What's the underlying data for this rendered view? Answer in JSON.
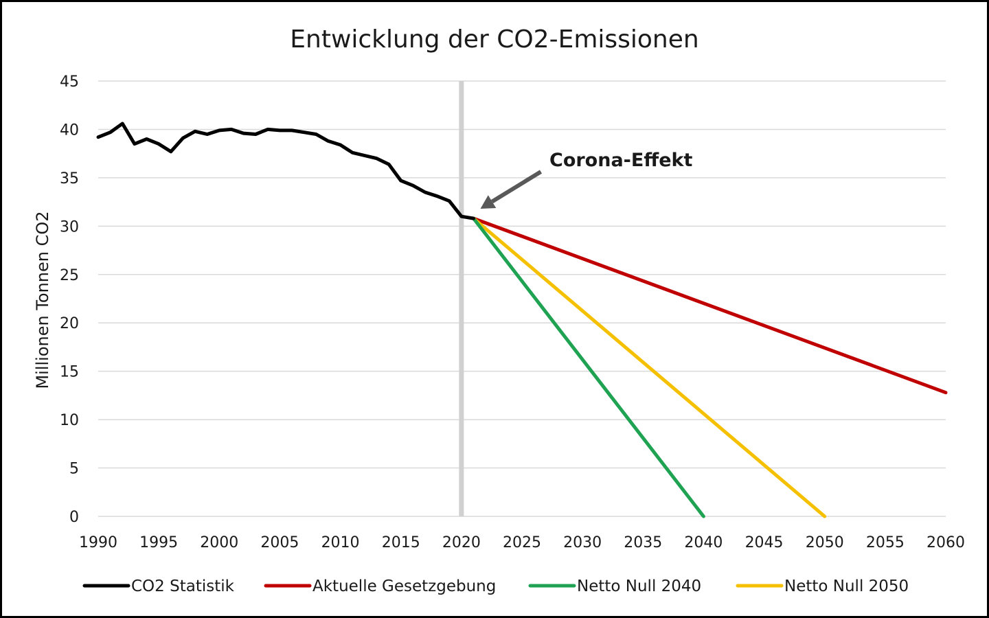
{
  "chart_data": {
    "type": "line",
    "title": "Entwicklung der CO2-Emissionen",
    "xlabel": "",
    "ylabel": "Millionen Tonnen CO2",
    "xlim": [
      1990,
      2060
    ],
    "ylim": [
      0,
      45
    ],
    "x_ticks": [
      "1990",
      "1995",
      "2000",
      "2005",
      "2010",
      "2015",
      "2020",
      "2025",
      "2030",
      "2035",
      "2040",
      "2045",
      "2050",
      "2055",
      "2060"
    ],
    "y_ticks": [
      "0",
      "5",
      "10",
      "15",
      "20",
      "25",
      "30",
      "35",
      "40",
      "45"
    ],
    "grid": true,
    "vertical_marker_x": 2020,
    "annotation": {
      "text": "Corona-Effekt",
      "target_x": 2021,
      "target_y": 30.8
    },
    "legend_position": "bottom",
    "series": [
      {
        "name": "CO2 Statistik",
        "color": "#000000",
        "x": [
          1990,
          1991,
          1992,
          1993,
          1994,
          1995,
          1996,
          1997,
          1998,
          1999,
          2000,
          2001,
          2002,
          2003,
          2004,
          2005,
          2006,
          2007,
          2008,
          2009,
          2010,
          2011,
          2012,
          2013,
          2014,
          2015,
          2016,
          2017,
          2018,
          2019,
          2020,
          2021
        ],
        "y": [
          39.2,
          39.7,
          40.6,
          38.5,
          39.0,
          38.5,
          37.7,
          39.1,
          39.8,
          39.5,
          39.9,
          40.0,
          39.6,
          39.5,
          40.0,
          39.9,
          39.9,
          39.7,
          39.5,
          38.8,
          38.4,
          37.6,
          37.3,
          37.0,
          36.4,
          34.7,
          34.2,
          33.5,
          33.1,
          32.6,
          31.0,
          30.8
        ]
      },
      {
        "name": "Aktuelle Gesetzgebung",
        "color": "#c00000",
        "x": [
          2021,
          2060
        ],
        "y": [
          30.8,
          12.8
        ]
      },
      {
        "name": "Netto Null 2040",
        "color": "#1fa353",
        "x": [
          2021,
          2040
        ],
        "y": [
          30.8,
          0
        ]
      },
      {
        "name": "Netto Null 2050",
        "color": "#f5c000",
        "x": [
          2021,
          2050
        ],
        "y": [
          30.8,
          0
        ]
      }
    ]
  }
}
